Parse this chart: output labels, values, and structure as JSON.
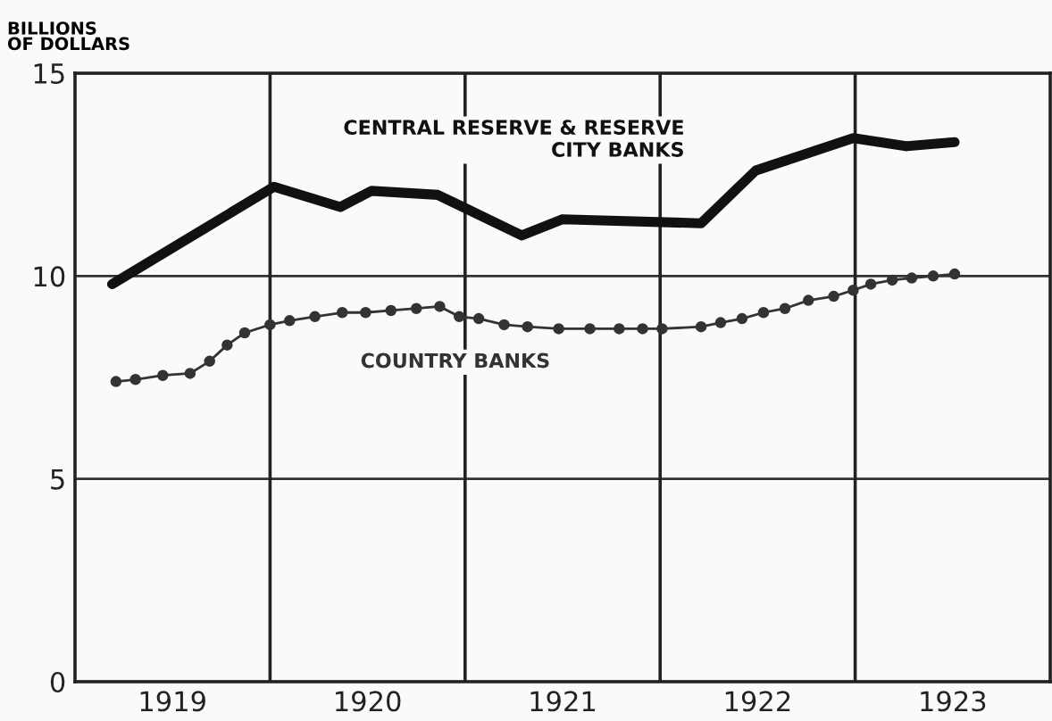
{
  "chart_data": {
    "type": "line",
    "ylabel": "BILLIONS\nOF DOLLARS",
    "xlim": [
      1919,
      1924
    ],
    "xticks": [
      {
        "value": 1919.5,
        "label": "1919"
      },
      {
        "value": 1920.5,
        "label": "1920"
      },
      {
        "value": 1921.5,
        "label": "1921"
      },
      {
        "value": 1922.5,
        "label": "1922"
      },
      {
        "value": 1923.5,
        "label": "1923"
      }
    ],
    "ylim": [
      0,
      15
    ],
    "yticks": [
      0,
      5,
      10,
      15
    ],
    "grid": "y",
    "ref_lines": [
      {
        "axis": "x",
        "value": 1920,
        "color": "#222222"
      },
      {
        "axis": "x",
        "value": 1921,
        "color": "#222222"
      },
      {
        "axis": "x",
        "value": 1922,
        "color": "#222222"
      },
      {
        "axis": "x",
        "value": 1923,
        "color": "#222222"
      }
    ],
    "series": [
      {
        "name": "CENTRAL RESERVE & RESERVE\nCITY BANKS",
        "color": "#111111",
        "marker": "none",
        "x": [
          1919.19,
          1920.02,
          1920.36,
          1920.52,
          1920.86,
          1921.29,
          1921.5,
          1922.21,
          1922.49,
          1922.99,
          1923.26,
          1923.51
        ],
        "values": [
          9.8,
          12.2,
          11.7,
          12.1,
          12.0,
          11.0,
          11.4,
          11.3,
          12.6,
          13.4,
          13.2,
          13.3
        ]
      },
      {
        "name": "COUNTRY BANKS",
        "color": "#333333",
        "marker": "circle",
        "x": [
          1919.21,
          1919.31,
          1919.45,
          1919.59,
          1919.69,
          1919.78,
          1919.87,
          1920.0,
          1920.1,
          1920.23,
          1920.37,
          1920.49,
          1920.62,
          1920.75,
          1920.87,
          1920.97,
          1921.07,
          1921.2,
          1921.32,
          1921.48,
          1921.64,
          1921.79,
          1921.91,
          1922.01,
          1922.21,
          1922.31,
          1922.42,
          1922.53,
          1922.64,
          1922.76,
          1922.89,
          1922.99,
          1923.08,
          1923.19,
          1923.29,
          1923.4,
          1923.51
        ],
        "values": [
          7.4,
          7.45,
          7.55,
          7.6,
          7.9,
          8.3,
          8.6,
          8.8,
          8.9,
          9.0,
          9.1,
          9.1,
          9.15,
          9.2,
          9.25,
          9.0,
          8.95,
          8.8,
          8.75,
          8.7,
          8.7,
          8.7,
          8.7,
          8.7,
          8.75,
          8.85,
          8.95,
          9.1,
          9.2,
          9.4,
          9.5,
          9.65,
          9.8,
          9.9,
          9.95,
          10.0,
          10.05
        ]
      }
    ]
  }
}
